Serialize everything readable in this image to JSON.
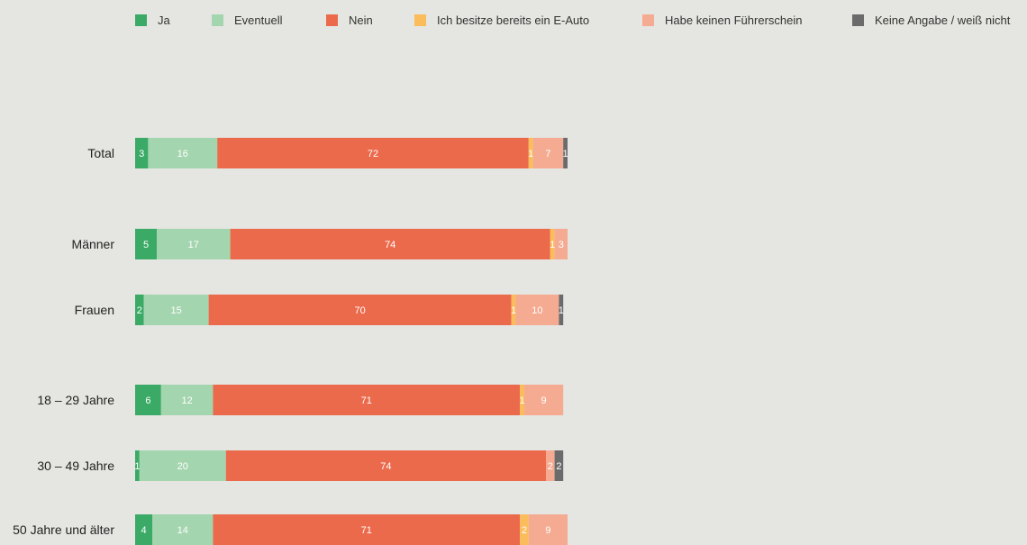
{
  "chart_data": {
    "type": "bar",
    "orientation": "horizontal",
    "stacked": true,
    "legend_position": "top",
    "grid": false,
    "xlim": [
      0,
      100
    ],
    "title": "",
    "xlabel": "",
    "ylabel": "",
    "categories": [
      "Total",
      "Männer",
      "Frauen",
      "18 – 29 Jahre",
      "30 – 49 Jahre",
      "50 Jahre und älter"
    ],
    "series": [
      {
        "name": "Ja",
        "color": "#3aaa66",
        "label_color": "#ffffff",
        "values": [
          3,
          5,
          2,
          6,
          1,
          4
        ]
      },
      {
        "name": "Eventuell",
        "color": "#a3d5ae",
        "label_color": "#ffffff",
        "values": [
          16,
          17,
          15,
          12,
          20,
          14
        ]
      },
      {
        "name": "Nein",
        "color": "#ec6a4c",
        "label_color": "#ffffff",
        "values": [
          72,
          74,
          70,
          71,
          74,
          71
        ]
      },
      {
        "name": "Ich besitze bereits ein E-Auto",
        "color": "#fbbd5b",
        "label_color": "#ffffff",
        "values": [
          1,
          1,
          1,
          1,
          0,
          2
        ]
      },
      {
        "name": "Habe keinen Führerschein",
        "color": "#f5ab92",
        "label_color": "#ffffff",
        "values": [
          7,
          3,
          10,
          9,
          2,
          9
        ]
      },
      {
        "name": "Keine Angabe / weiß nicht",
        "color": "#6b6b6b",
        "label_color": "#ffffff",
        "values": [
          1,
          0,
          1,
          0,
          2,
          0
        ]
      }
    ]
  }
}
